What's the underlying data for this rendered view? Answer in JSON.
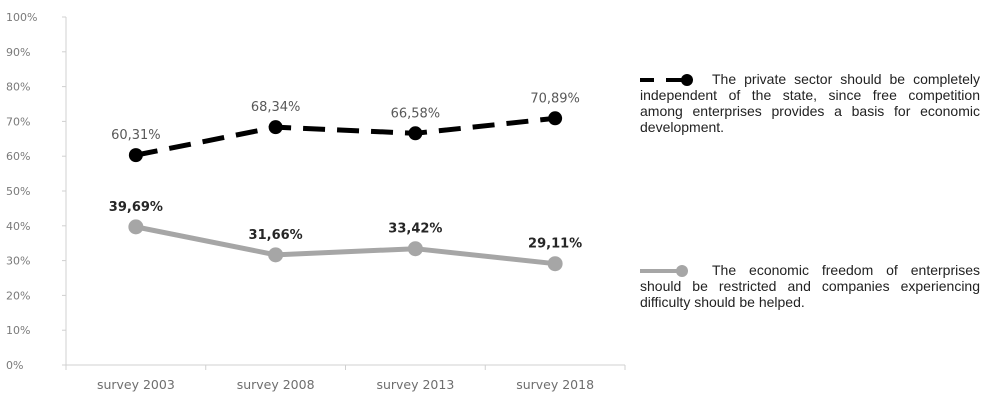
{
  "chart_data": {
    "type": "line",
    "categories": [
      "survey 2003",
      "survey 2008",
      "survey 2013",
      "survey 2018"
    ],
    "yticks": [
      "0%",
      "10%",
      "20%",
      "30%",
      "40%",
      "50%",
      "60%",
      "70%",
      "80%",
      "90%",
      "100%"
    ],
    "ylim": [
      0,
      100
    ],
    "grid": false,
    "legend_position": "right",
    "series": [
      {
        "name": "The private sector should be completely independent of the state, since free competition among enterprises provides a basis for economic development.",
        "values": [
          60.31,
          68.34,
          66.58,
          70.89
        ],
        "labels": [
          "60,31%",
          "68,34%",
          "66,58%",
          "70,89%"
        ],
        "color": "#000000",
        "label_color": "#595959",
        "style": "dashed"
      },
      {
        "name": "The economic freedom of enterprises should be restricted and companies experiencing difficulty should be helped.",
        "values": [
          39.69,
          31.66,
          33.42,
          29.11
        ],
        "labels": [
          "39,69%",
          "31,66%",
          "33,42%",
          "29,11%"
        ],
        "color": "#a6a6a6",
        "label_color": "#262626",
        "style": "solid"
      }
    ]
  }
}
